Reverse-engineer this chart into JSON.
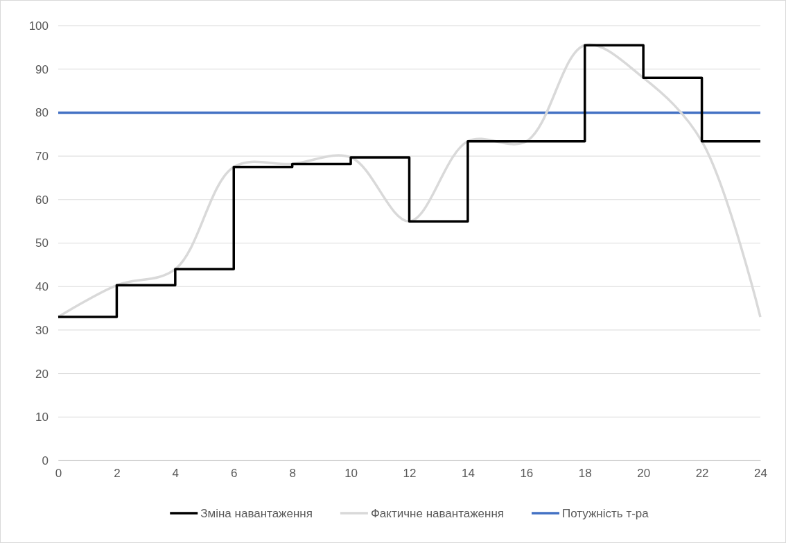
{
  "chart_data": {
    "type": "line",
    "xlim": [
      0,
      24
    ],
    "xticks": [
      0,
      2,
      4,
      6,
      8,
      10,
      12,
      14,
      16,
      18,
      20,
      22,
      24
    ],
    "ylim": [
      0,
      100
    ],
    "yticks": [
      0,
      10,
      20,
      30,
      40,
      50,
      60,
      70,
      80,
      90,
      100
    ],
    "grid": "y",
    "legend": "bottom",
    "marker": "none",
    "series": [
      {
        "name": "Зміна навантаження",
        "type": "step",
        "color": "#000000",
        "x": [
          0,
          2,
          4,
          6,
          8,
          10,
          12,
          14,
          16,
          18,
          20,
          22,
          24
        ],
        "values": [
          33,
          40.3,
          44,
          67.5,
          68.2,
          69.7,
          55,
          73.4,
          73.4,
          95.5,
          88,
          73.4,
          73.4
        ]
      },
      {
        "name": "Фактичне навантаження",
        "type": "line",
        "color": "#d9d9d9",
        "x": [
          0,
          2,
          4,
          6,
          8,
          10,
          12,
          14,
          16,
          18,
          20,
          22,
          24
        ],
        "values": [
          33,
          40.3,
          44,
          67.5,
          68.2,
          69.7,
          55,
          73.4,
          73.4,
          95.5,
          88,
          73.4,
          33
        ]
      },
      {
        "name": "Потужність т-ра",
        "type": "line",
        "color": "#4472c4",
        "x": [
          0,
          24
        ],
        "values": [
          80,
          80
        ]
      }
    ]
  }
}
